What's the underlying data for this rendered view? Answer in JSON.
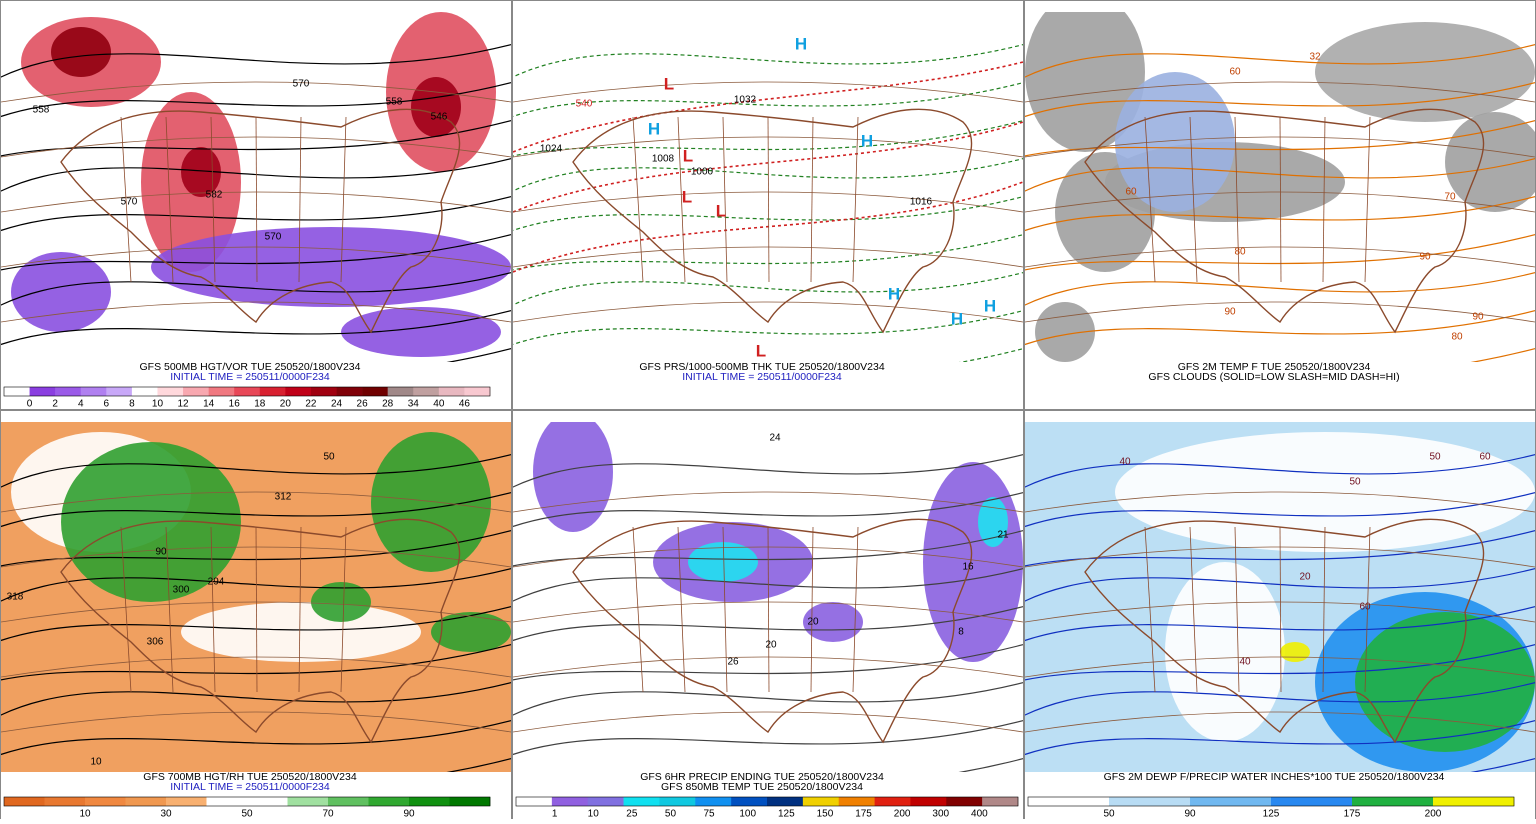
{
  "panels": [
    {
      "caption": [
        "GFS 500MB HGT/VOR TUE 250520/1800V234",
        "INITIAL TIME = 250511/0000F234"
      ],
      "map_labels": [
        "570",
        "558",
        "546",
        "558",
        "570",
        "582",
        "570"
      ],
      "colorbar": {
        "colors": [
          "#ffffff",
          "#8a3ee0",
          "#9a5ae8",
          "#b080f0",
          "#c8a8f8",
          "#ffffff",
          "#ffd8dc",
          "#f8a8b0",
          "#f07880",
          "#e84858",
          "#d82030",
          "#c00018",
          "#a00010",
          "#800008",
          "#700000",
          "#a08888",
          "#c0a0a0",
          "#e8b8c0",
          "#f8c8d0"
        ],
        "labels": [
          "0",
          "2",
          "4",
          "6",
          "8",
          "10",
          "12",
          "14",
          "16",
          "18",
          "20",
          "22",
          "24",
          "26",
          "28",
          "34",
          "40",
          "46"
        ]
      }
    },
    {
      "caption": [
        "GFS PRS/1000-500MB THK TUE 250520/1800V234",
        "INITIAL TIME = 250511/0000F234"
      ],
      "map_labels": [
        "1032",
        "1024",
        "1008",
        "1000",
        "540",
        "1016",
        "H",
        "H",
        "H",
        "H",
        "H",
        "H",
        "L",
        "L",
        "L",
        "L",
        "L"
      ]
    },
    {
      "caption": [
        "GFS 2M TEMP F TUE 250520/1800V234",
        "GFS CLOUDS (SOLID=LOW SLASH=MID DASH=HI)"
      ],
      "map_labels": [
        "60",
        "60",
        "70",
        "80",
        "90",
        "80",
        "90",
        "90",
        "32"
      ]
    },
    {
      "caption": [
        "GFS 700MB HGT/RH TUE 250520/1800V234",
        "INITIAL TIME = 250511/0000F234"
      ],
      "map_labels": [
        "312",
        "306",
        "300",
        "318",
        "294",
        "50",
        "90",
        "10"
      ],
      "colorbar": {
        "colors": [
          "#e06820",
          "#e87830",
          "#f08840",
          "#f09850",
          "#f8b070",
          "#ffffff",
          "#ffffff",
          "#a0e0a0",
          "#60c060",
          "#30a830",
          "#109010",
          "#007800"
        ],
        "labels": [
          "10",
          "30",
          "50",
          "70",
          "90"
        ]
      }
    },
    {
      "caption": [
        "GFS 6HR PRECIP ENDING TUE 250520/1800V234",
        "GFS 850MB TEMP TUE 250520/1800V234"
      ],
      "map_labels": [
        "24",
        "16",
        "20",
        "20",
        "26",
        "21",
        "8"
      ],
      "colorbar": {
        "colors": [
          "#ffffff",
          "#9060e0",
          "#8070e0",
          "#10e0f0",
          "#10c8e0",
          "#1090f0",
          "#0050c0",
          "#003080",
          "#f0d000",
          "#f08000",
          "#e02010",
          "#c00000",
          "#800000",
          "#b08888"
        ],
        "labels": [
          "1",
          "10",
          "25",
          "50",
          "75",
          "100",
          "125",
          "150",
          "175",
          "200",
          "300",
          "400"
        ]
      }
    },
    {
      "caption": [
        "GFS 2M DEWP F/PRECIP WATER INCHES*100 TUE 250520/1800V234"
      ],
      "map_labels": [
        "40",
        "50",
        "60",
        "20",
        "40",
        "50",
        "60"
      ],
      "colorbar": {
        "colors": [
          "#ffffff",
          "#b8dcf4",
          "#70b8f0",
          "#2888f0",
          "#20b040",
          "#f0f000"
        ],
        "labels": [
          "50",
          "90",
          "125",
          "175",
          "200"
        ]
      }
    }
  ]
}
